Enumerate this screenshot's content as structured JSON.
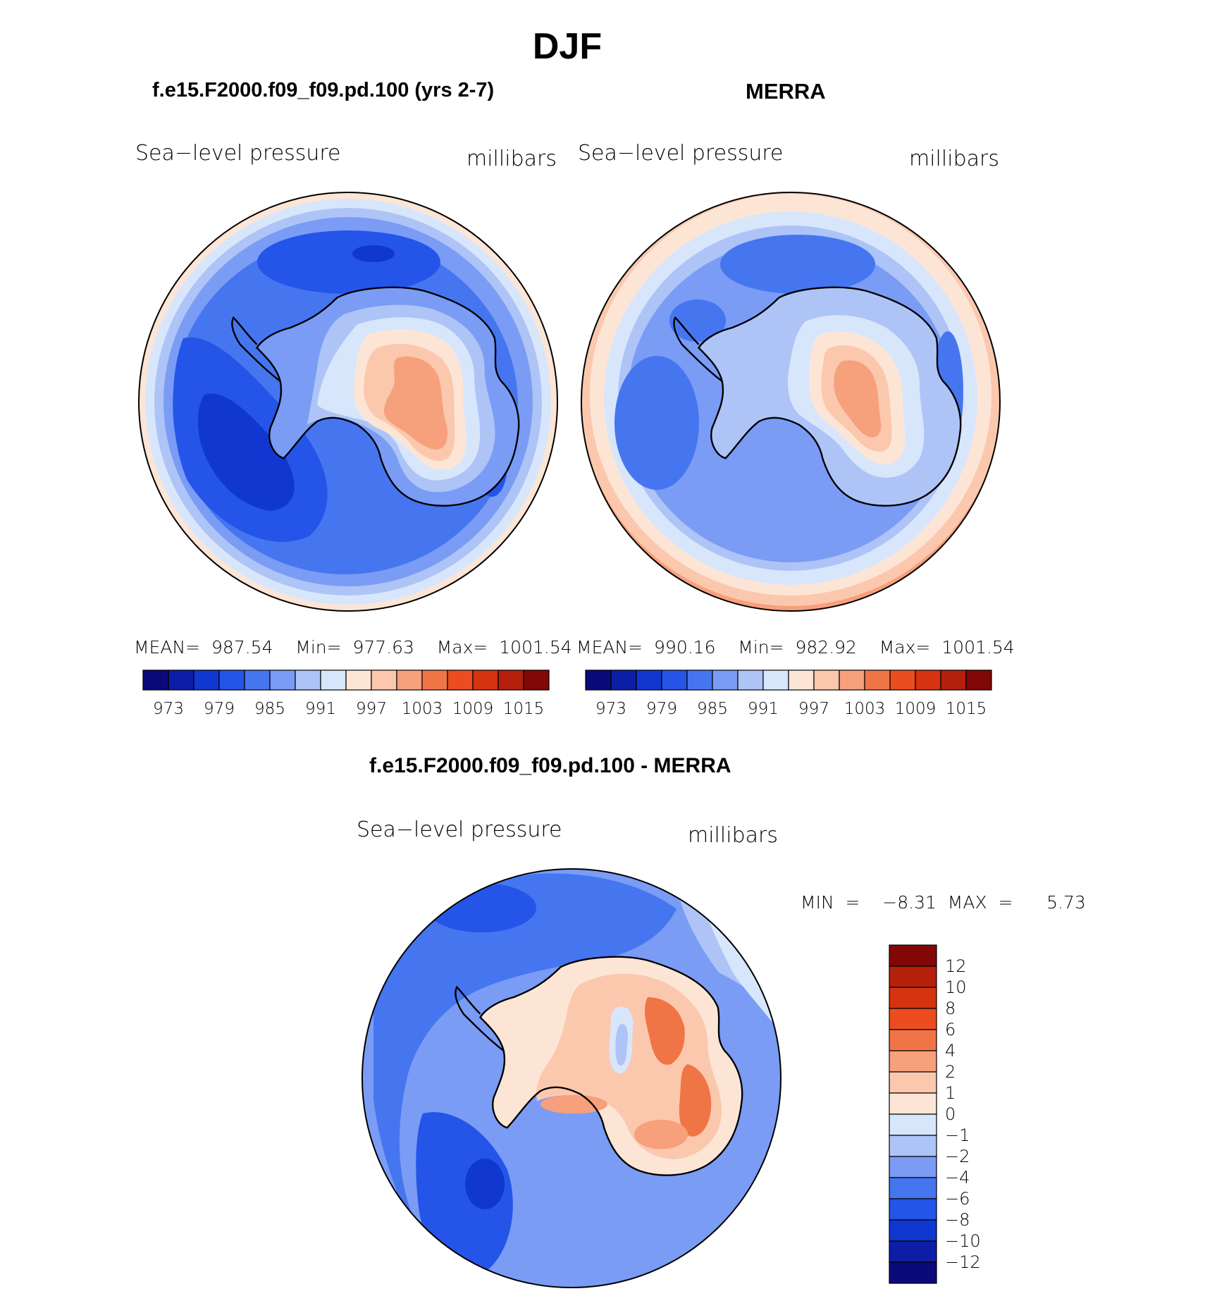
{
  "page_title": "DJF",
  "panels": [
    {
      "title": "f.e15.F2000.f09_f09.pd.100 (yrs 2-7)",
      "variable": "Sea−level pressure",
      "units": "millibars",
      "stats": "MEAN=  987.54    Min=  977.63    Max=  1001.54",
      "colorbar_labels": [
        "973",
        "979",
        "985",
        "991",
        "997",
        "1003",
        "1009",
        "1015"
      ]
    },
    {
      "title": "MERRA",
      "variable": "Sea−level pressure",
      "units": "millibars",
      "stats": "MEAN=  990.16    Min=  982.92    Max=  1001.54",
      "colorbar_labels": [
        "973",
        "979",
        "985",
        "991",
        "997",
        "1003",
        "1009",
        "1015"
      ]
    }
  ],
  "diff_panel": {
    "title": "f.e15.F2000.f09_f09.pd.100 - MERRA",
    "variable": "Sea−level pressure",
    "units": "millibars",
    "minmax": "MIN  =    −8.31  MAX  =      5.73",
    "colorbar_labels": [
      "12",
      "10",
      "8",
      "6",
      "4",
      "2",
      "1",
      "0",
      "−1",
      "−2",
      "−4",
      "−6",
      "−8",
      "−10",
      "−12"
    ]
  },
  "colors": {
    "abs_scale": [
      "#0c0a7a",
      "#0c1ea6",
      "#1038d0",
      "#2455e8",
      "#4675f0",
      "#7a9cf5",
      "#aec4f7",
      "#d8e6fb",
      "#fde5d6",
      "#fbc8ae",
      "#f6a07c",
      "#f07546",
      "#eb4d20",
      "#d63310",
      "#b4200c",
      "#820808"
    ],
    "diff_scale": [
      "#820808",
      "#b4200c",
      "#d63310",
      "#eb4d20",
      "#f07546",
      "#f6a07c",
      "#fbc8ae",
      "#fde5d6",
      "#d8e6fb",
      "#aec4f7",
      "#7a9cf5",
      "#4675f0",
      "#2455e8",
      "#1038d0",
      "#0c1ea6",
      "#0c0a7a"
    ]
  }
}
